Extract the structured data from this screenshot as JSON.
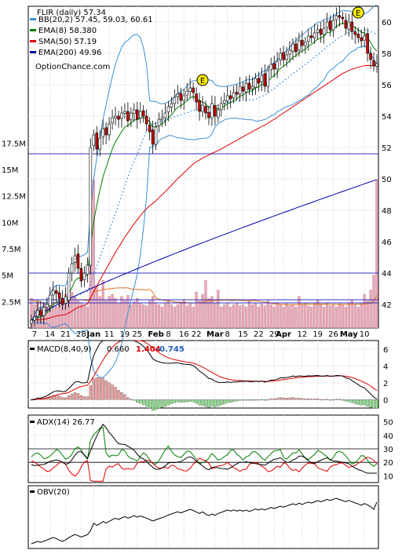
{
  "chart_data": {
    "type": "stock-technical",
    "symbol_line": "FLIR (daily) 57.34",
    "watermark": "OptionChance.com",
    "colors": {
      "up": "#ffffff",
      "down": "#cc0000",
      "bb": "#3a8fd8",
      "ema8": "#008000",
      "sma50": "#dd0000",
      "ema200": "#0000aa",
      "pink": "#e090e0",
      "macd": "#000000",
      "signal": "#dd0000",
      "hist_pos": "#f0a0a0",
      "hist_neg": "#90e090",
      "adx": "#000000",
      "diplus": "#008000",
      "diminus": "#dd0000",
      "volume": "#e8a8b8",
      "vol_avg": "#e07020",
      "marker": "#ffee00"
    },
    "legend": [
      {
        "label": "BB(20,2) 57.45, 59.03, 60.61",
        "color": "#3a8fd8"
      },
      {
        "label": "EMA(8) 58.380",
        "color": "#008000"
      },
      {
        "label": "SMA(50) 57.19",
        "color": "#dd0000"
      },
      {
        "label": "EMA(200) 49.96",
        "color": "#0000aa"
      }
    ],
    "price_axis": {
      "min": 40.5,
      "max": 61.0,
      "ticks": [
        42,
        44,
        46,
        48,
        50,
        52,
        54,
        56,
        58,
        60
      ]
    },
    "volume_axis": {
      "max_millions": 28,
      "ticks": [
        "17.5M",
        "15M",
        "12.5M",
        "10M",
        "7.5M",
        "5M",
        "2.5M"
      ],
      "tick_values": [
        17.5,
        15,
        12.5,
        10,
        7.5,
        5,
        2.5
      ]
    },
    "x_labels": [
      {
        "label": "7",
        "index": 1,
        "bold": false
      },
      {
        "label": "14",
        "index": 6,
        "bold": false
      },
      {
        "label": "21",
        "index": 11,
        "bold": false
      },
      {
        "label": "28",
        "index": 16,
        "bold": false
      },
      {
        "label": "Jan",
        "index": 20,
        "bold": true
      },
      {
        "label": "11",
        "index": 25,
        "bold": false
      },
      {
        "label": "19",
        "index": 30,
        "bold": false
      },
      {
        "label": "25",
        "index": 34,
        "bold": false
      },
      {
        "label": "Feb",
        "index": 40,
        "bold": true
      },
      {
        "label": "8",
        "index": 44,
        "bold": false
      },
      {
        "label": "16",
        "index": 49,
        "bold": false
      },
      {
        "label": "22",
        "index": 53,
        "bold": false
      },
      {
        "label": "Mar",
        "index": 59,
        "bold": true
      },
      {
        "label": "8",
        "index": 63,
        "bold": false
      },
      {
        "label": "15",
        "index": 68,
        "bold": false
      },
      {
        "label": "22",
        "index": 73,
        "bold": false
      },
      {
        "label": "29",
        "index": 78,
        "bold": false
      },
      {
        "label": "Apr",
        "index": 81,
        "bold": true
      },
      {
        "label": "12",
        "index": 87,
        "bold": false
      },
      {
        "label": "19",
        "index": 92,
        "bold": false
      },
      {
        "label": "26",
        "index": 97,
        "bold": false
      },
      {
        "label": "May",
        "index": 102,
        "bold": true
      },
      {
        "label": "10",
        "index": 107,
        "bold": false
      }
    ],
    "bar_count": 112,
    "close": [
      41.0,
      41.2,
      41.6,
      41.3,
      41.8,
      42.0,
      42.6,
      42.9,
      42.7,
      42.4,
      42.0,
      42.5,
      44.0,
      44.6,
      45.1,
      44.3,
      43.5,
      44.0,
      44.5,
      52.0,
      52.8,
      51.9,
      52.6,
      53.2,
      52.8,
      53.5,
      53.9,
      54.0,
      53.8,
      54.2,
      54.3,
      53.7,
      54.2,
      54.4,
      53.8,
      54.3,
      54.0,
      53.5,
      53.0,
      52.2,
      53.3,
      53.8,
      53.9,
      54.2,
      54.6,
      54.8,
      55.2,
      55.4,
      55.0,
      55.3,
      55.6,
      55.8,
      55.5,
      54.9,
      54.3,
      54.7,
      54.2,
      53.9,
      54.8,
      54.0,
      54.4,
      54.8,
      55.0,
      55.3,
      55.1,
      55.5,
      55.4,
      55.9,
      55.6,
      56.1,
      55.7,
      55.9,
      56.4,
      56.1,
      56.6,
      55.9,
      56.9,
      57.3,
      57.0,
      57.5,
      58.0,
      57.6,
      57.9,
      58.2,
      58.6,
      58.1,
      58.8,
      58.5,
      58.7,
      59.1,
      59.0,
      59.3,
      59.5,
      59.2,
      59.6,
      60.0,
      59.5,
      60.1,
      60.4,
      60.3,
      60.2,
      59.6,
      60.0,
      59.4,
      59.2,
      59.0,
      58.8,
      59.1,
      58.0,
      57.6,
      57.2,
      57.34
    ],
    "volume": [
      2.8,
      2.2,
      2.6,
      2.0,
      2.4,
      2.1,
      2.5,
      2.3,
      2.0,
      3.0,
      2.6,
      3.2,
      4.0,
      3.4,
      3.0,
      2.6,
      2.4,
      2.2,
      2.0,
      8.0,
      14.0,
      4.0,
      3.0,
      4.5,
      2.6,
      3.0,
      3.2,
      2.8,
      2.4,
      3.0,
      2.6,
      3.1,
      2.2,
      2.5,
      2.8,
      2.4,
      2.2,
      2.1,
      2.6,
      3.0,
      2.4,
      2.2,
      2.0,
      2.4,
      2.6,
      2.2,
      2.0,
      2.2,
      2.4,
      2.6,
      2.1,
      2.3,
      2.0,
      3.4,
      2.6,
      3.2,
      4.5,
      2.8,
      3.0,
      2.4,
      3.6,
      2.0,
      2.2,
      2.4,
      2.0,
      2.2,
      2.4,
      2.1,
      2.2,
      2.0,
      2.5,
      2.2,
      2.4,
      2.0,
      2.3,
      2.1,
      2.6,
      2.2,
      2.0,
      2.4,
      2.2,
      2.0,
      2.3,
      2.1,
      2.2,
      2.0,
      3.0,
      2.2,
      2.4,
      2.1,
      2.0,
      2.3,
      2.6,
      2.2,
      2.0,
      2.4,
      2.1,
      2.2,
      2.0,
      2.3,
      2.2,
      2.0,
      2.4,
      2.6,
      2.2,
      2.0,
      2.4,
      3.2,
      2.6,
      3.6,
      5.0,
      14.0
    ],
    "macd": {
      "title": "MACD(8,40,9)",
      "values": {
        "macd": "0.660",
        "signal": "1.404",
        "histogram": "-0.745"
      },
      "axis": {
        "min": -1.0,
        "max": 7.0,
        "ticks": [
          0,
          2,
          4,
          6
        ]
      }
    },
    "adx": {
      "title": "ADX(14) 26.77",
      "axis": {
        "min": 5,
        "max": 55,
        "ticks": [
          10,
          20,
          30,
          40,
          50
        ]
      },
      "reference_levels": [
        20,
        30
      ]
    },
    "obv": {
      "title": "OBV(20)"
    },
    "event_markers": [
      {
        "label": "E",
        "index": 55
      },
      {
        "label": "E",
        "index": 105
      }
    ]
  }
}
